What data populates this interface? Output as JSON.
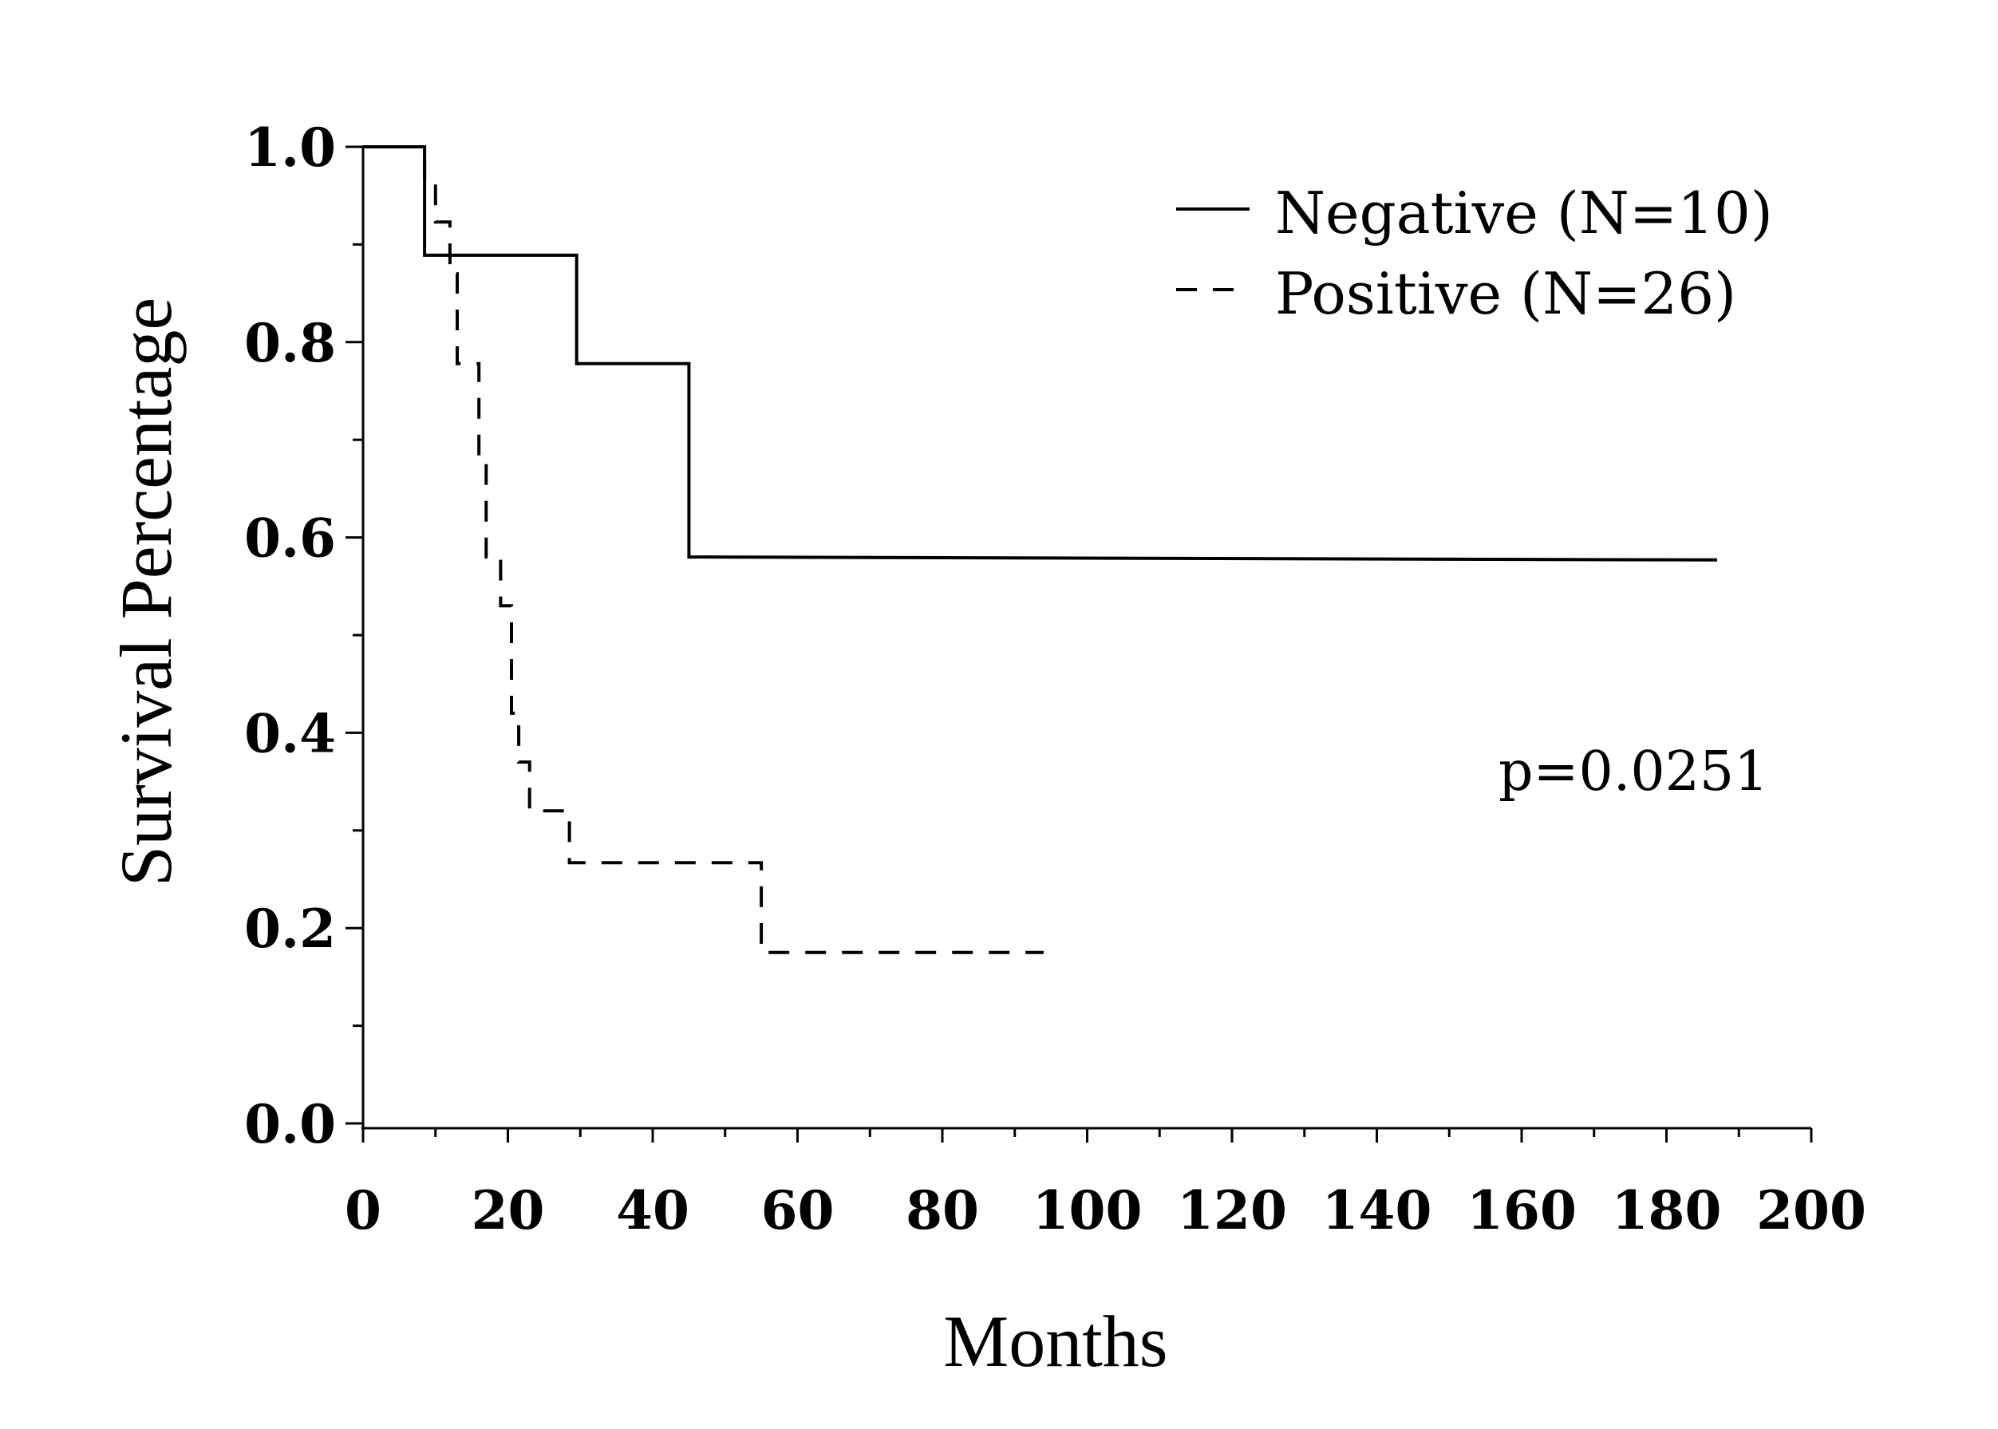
{
  "chart_data": {
    "type": "line",
    "xlabel": "Months",
    "ylabel": "Survival Percentage",
    "xlim": [
      0,
      200
    ],
    "ylim": [
      0,
      1
    ],
    "x_ticks": [
      0,
      20,
      40,
      60,
      80,
      100,
      120,
      140,
      160,
      180,
      200
    ],
    "x_minor_step": 10,
    "y_ticks": [
      0.0,
      0.2,
      0.4,
      0.6,
      0.8,
      1.0
    ],
    "y_tick_labels": [
      "0.0",
      "0.2",
      "0.4",
      "0.6",
      "0.8",
      "1.0"
    ],
    "y_minor_step": 0.1,
    "grid": false,
    "legend_position": "top-right",
    "series": [
      {
        "name": "Negative  (N=10)",
        "style": "solid",
        "color": "#000000",
        "step_points": [
          [
            0,
            1.0
          ],
          [
            8.5,
            1.0
          ],
          [
            8.5,
            0.889
          ],
          [
            29.5,
            0.889
          ],
          [
            29.5,
            0.778
          ],
          [
            45,
            0.778
          ],
          [
            45,
            0.58
          ],
          [
            187,
            0.577
          ]
        ]
      },
      {
        "name": "Positive  (N=26)",
        "style": "dashed",
        "color": "#000000",
        "step_points": [
          [
            0,
            1.0
          ],
          [
            8.5,
            1.0
          ],
          [
            8.5,
            0.962
          ],
          [
            10,
            0.962
          ],
          [
            10,
            0.923
          ],
          [
            12,
            0.923
          ],
          [
            12,
            0.87
          ],
          [
            13,
            0.87
          ],
          [
            13,
            0.778
          ],
          [
            16,
            0.778
          ],
          [
            16,
            0.68
          ],
          [
            17,
            0.68
          ],
          [
            17,
            0.58
          ],
          [
            19,
            0.58
          ],
          [
            19,
            0.53
          ],
          [
            20.5,
            0.53
          ],
          [
            20.5,
            0.42
          ],
          [
            21.5,
            0.42
          ],
          [
            21.5,
            0.37
          ],
          [
            23,
            0.37
          ],
          [
            23,
            0.32
          ],
          [
            28.5,
            0.32
          ],
          [
            28.5,
            0.267
          ],
          [
            55,
            0.267
          ],
          [
            55,
            0.175
          ],
          [
            94,
            0.175
          ]
        ]
      }
    ],
    "annotations": [
      {
        "text": "p=0.0251"
      }
    ]
  }
}
